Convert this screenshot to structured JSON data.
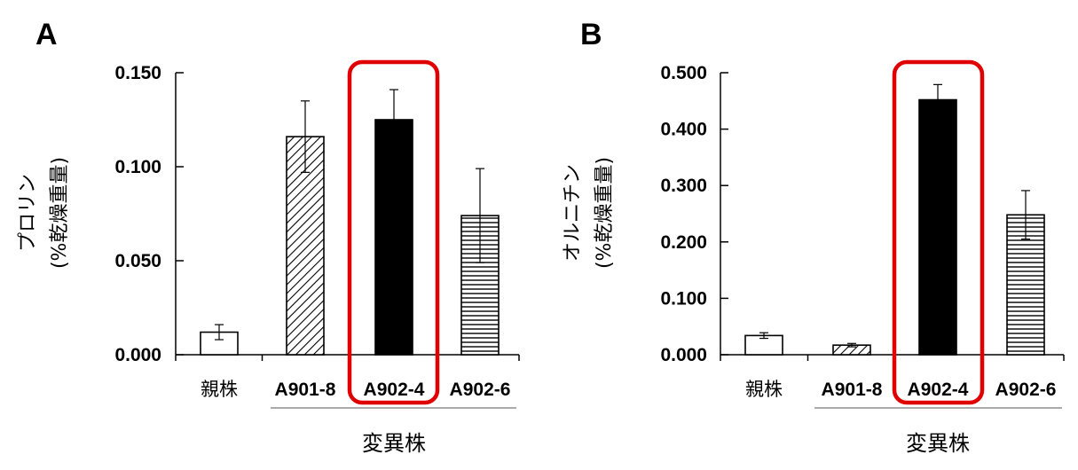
{
  "chart_data": [
    {
      "panel": "A",
      "type": "bar",
      "ylabel": "プロリン",
      "ylabel_unit": "(%乾燥重量)",
      "ylim": [
        0,
        0.15
      ],
      "yticks": [
        "0.000",
        "0.050",
        "0.100",
        "0.150"
      ],
      "categories": [
        "親株",
        "A901-8",
        "A902-4",
        "A902-6"
      ],
      "values": [
        0.012,
        0.116,
        0.125,
        0.074
      ],
      "errors": [
        0.004,
        0.019,
        0.016,
        0.025
      ],
      "patterns": [
        "white",
        "diagonal",
        "solid",
        "horizontal"
      ],
      "group_label": "変異株",
      "highlight": "A902-4"
    },
    {
      "panel": "B",
      "type": "bar",
      "ylabel": "オルニチン",
      "ylabel_unit": "(%乾燥重量)",
      "ylim": [
        0,
        0.5
      ],
      "yticks": [
        "0.000",
        "0.100",
        "0.200",
        "0.300",
        "0.400",
        "0.500"
      ],
      "categories": [
        "親株",
        "A901-8",
        "A902-4",
        "A902-6"
      ],
      "values": [
        0.034,
        0.017,
        0.452,
        0.248
      ],
      "errors": [
        0.005,
        0.003,
        0.027,
        0.043
      ],
      "patterns": [
        "white",
        "diagonal",
        "solid",
        "horizontal"
      ],
      "group_label": "変異株",
      "highlight": "A902-4"
    }
  ],
  "colors": {
    "bar_stroke": "#000000",
    "solid_fill": "#000000",
    "highlight_box": "#e00000"
  }
}
